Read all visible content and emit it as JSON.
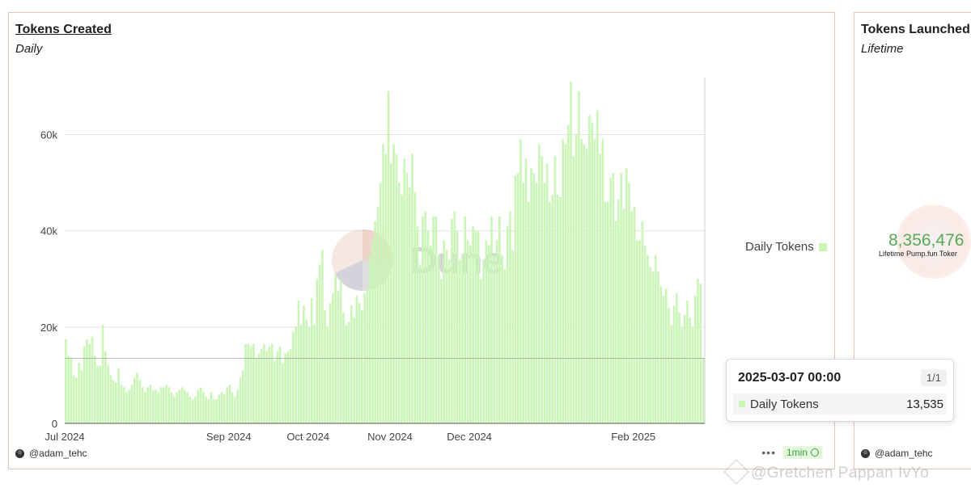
{
  "main_panel": {
    "title": "Tokens Created",
    "subtitle": "Daily",
    "author": "@adam_tehc",
    "refresh": "1min",
    "more": "•••",
    "watermark_logo": "Dune"
  },
  "tooltip": {
    "date": "2025-03-07 00:00",
    "page": "1/1",
    "series": "Daily Tokens",
    "value": "13,535"
  },
  "side_panel": {
    "title": "Tokens Launched",
    "subtitle": "Lifetime",
    "value": "8,356,476",
    "label": "Lifetime Pump.fun Toker",
    "author": "@adam_tehc"
  },
  "watermark": "@Gretchen Pappan IvYo",
  "colors": {
    "bar": "#c9f5b5",
    "bar_stroke": "#b5ec9d",
    "grid": "#e4e4e4",
    "panel_border": "#e6c7b7",
    "big_number": "#57a957"
  },
  "chart_data": {
    "type": "bar",
    "title": "Tokens Created",
    "subtitle": "Daily",
    "x_start": "2024-07-01",
    "x_tick_labels": [
      "Jul 2024",
      "Sep 2024",
      "Oct 2024",
      "Nov 2024",
      "Dec 2024",
      "Feb 2025"
    ],
    "y_tick_labels": [
      "0",
      "20k",
      "40k",
      "60k"
    ],
    "ylim": [
      0,
      72000
    ],
    "legend": "right",
    "grid": true,
    "series": [
      {
        "name": "Daily Tokens",
        "values": [
          17500,
          14000,
          13500,
          10000,
          9500,
          12500,
          11000,
          16000,
          17500,
          16500,
          18000,
          14000,
          12000,
          12000,
          20500,
          15000,
          12000,
          10000,
          9000,
          8500,
          11500,
          8000,
          7500,
          6500,
          7000,
          8000,
          9500,
          10500,
          9000,
          7500,
          6500,
          7500,
          8000,
          7000,
          7000,
          6500,
          7500,
          7500,
          8000,
          7500,
          6500,
          5500,
          6500,
          7000,
          7500,
          7000,
          6500,
          5500,
          5000,
          5500,
          7000,
          7500,
          6500,
          5500,
          5000,
          6500,
          5000,
          5000,
          6000,
          6500,
          6000,
          7500,
          8000,
          6500,
          5500,
          7000,
          9500,
          11000,
          16500,
          16500,
          16000,
          16500,
          13500,
          14500,
          15500,
          16500,
          15000,
          16000,
          16500,
          13000,
          15000,
          16000,
          12500,
          14500,
          15000,
          15500,
          19000,
          20000,
          25500,
          20500,
          24500,
          21500,
          20000,
          26000,
          20500,
          30000,
          33000,
          36000,
          23500,
          20000,
          25000,
          27000,
          31000,
          27500,
          30000,
          23000,
          20500,
          21000,
          24500,
          22000,
          26500,
          25000,
          23500,
          27000,
          28000,
          35000,
          38000,
          42000,
          45000,
          50000,
          58000,
          56000,
          69000,
          54000,
          58000,
          56000,
          50000,
          47500,
          55000,
          52000,
          49000,
          56000,
          48000,
          41000,
          33000,
          43000,
          44000,
          40000,
          37000,
          43000,
          43000,
          35000,
          30000,
          38000,
          36000,
          34000,
          42500,
          44000,
          40000,
          34000,
          35000,
          43000,
          38000,
          37000,
          41000,
          40000,
          40000,
          30000,
          34000,
          38000,
          37000,
          43000,
          35000,
          38000,
          43000,
          35000,
          32000,
          41000,
          44000,
          36000,
          51500,
          52000,
          59000,
          50000,
          55000,
          46000,
          53000,
          52000,
          50000,
          58000,
          55500,
          50000,
          54000,
          46000,
          47500,
          55500,
          47500,
          47000,
          59000,
          58000,
          62000,
          71000,
          55500,
          60000,
          69000,
          59000,
          58000,
          57000,
          64000,
          62500,
          59000,
          65000,
          56000,
          59000,
          46000,
          46000,
          51000,
          52000,
          42000,
          46500,
          52000,
          44500,
          53000,
          50000,
          44000,
          45000,
          38000,
          38000,
          42000,
          37000,
          35000,
          32500,
          31500,
          35000,
          31500,
          28500,
          26500,
          28000,
          24000,
          20500,
          24500,
          27000,
          23000,
          20000,
          22500,
          25500,
          22000,
          20000,
          26500,
          30000,
          29000,
          13535
        ]
      }
    ]
  }
}
